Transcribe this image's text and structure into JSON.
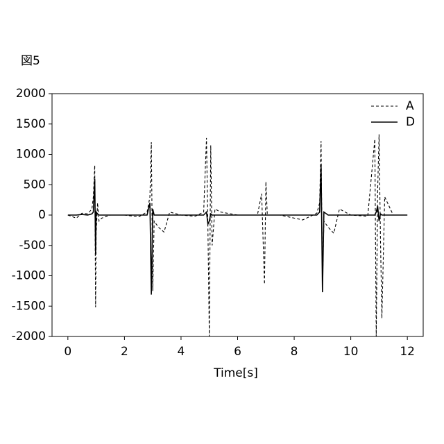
{
  "chart_data": {
    "type": "line",
    "figure_label": "図5",
    "x_label": "Time[s]",
    "x": [
      0,
      0.3,
      0.5,
      0.7,
      0.85,
      0.9,
      0.95,
      0.98,
      1.0,
      1.05,
      1.1,
      1.2,
      1.5,
      2.0,
      2.5,
      2.8,
      2.9,
      2.95,
      3.0,
      3.05,
      3.2,
      3.4,
      3.6,
      4.0,
      4.5,
      4.8,
      4.9,
      4.95,
      5.0,
      5.05,
      5.1,
      5.2,
      5.4,
      6.0,
      6.7,
      6.85,
      6.95,
      7.0,
      7.05,
      7.2,
      7.5,
      8.3,
      8.8,
      8.9,
      8.95,
      9.0,
      9.05,
      9.2,
      9.4,
      9.6,
      10.0,
      10.6,
      10.85,
      10.9,
      10.95,
      11.0,
      11.05,
      11.1,
      11.2,
      11.5,
      12.0
    ],
    "series": [
      {
        "name": "A",
        "color": "#000000",
        "linestyle": "dashed",
        "values": [
          0,
          -50,
          30,
          20,
          100,
          300,
          820,
          -1520,
          -300,
          200,
          -100,
          -50,
          0,
          0,
          -30,
          50,
          300,
          1200,
          -1250,
          -100,
          -200,
          -280,
          50,
          0,
          -20,
          50,
          1270,
          -200,
          -2000,
          1150,
          -500,
          100,
          50,
          0,
          0,
          350,
          -1140,
          550,
          0,
          0,
          0,
          -80,
          30,
          200,
          1220,
          -1200,
          -100,
          -200,
          -300,
          100,
          0,
          -20,
          1250,
          -2000,
          400,
          1330,
          -400,
          -1700,
          300,
          0,
          0
        ]
      },
      {
        "name": "D",
        "color": "#000000",
        "linestyle": "solid",
        "values": [
          0,
          0,
          10,
          0,
          20,
          50,
          600,
          -650,
          50,
          20,
          0,
          0,
          0,
          0,
          0,
          0,
          200,
          -1310,
          100,
          0,
          0,
          0,
          0,
          0,
          0,
          0,
          50,
          -150,
          -100,
          20,
          0,
          0,
          0,
          0,
          0,
          0,
          0,
          0,
          0,
          0,
          0,
          0,
          0,
          50,
          830,
          -1270,
          50,
          0,
          0,
          0,
          0,
          0,
          0,
          50,
          150,
          -100,
          20,
          0,
          0,
          0,
          0
        ]
      }
    ],
    "xlim": [
      -0.56,
      12.56
    ],
    "xticks": [
      0,
      2,
      4,
      6,
      8,
      10,
      12
    ],
    "ylim": [
      -2000,
      2000
    ],
    "yticks": [
      -2000,
      -1500,
      -1000,
      -500,
      0,
      500,
      1000,
      1500,
      2000
    ],
    "legend": "upper right"
  }
}
